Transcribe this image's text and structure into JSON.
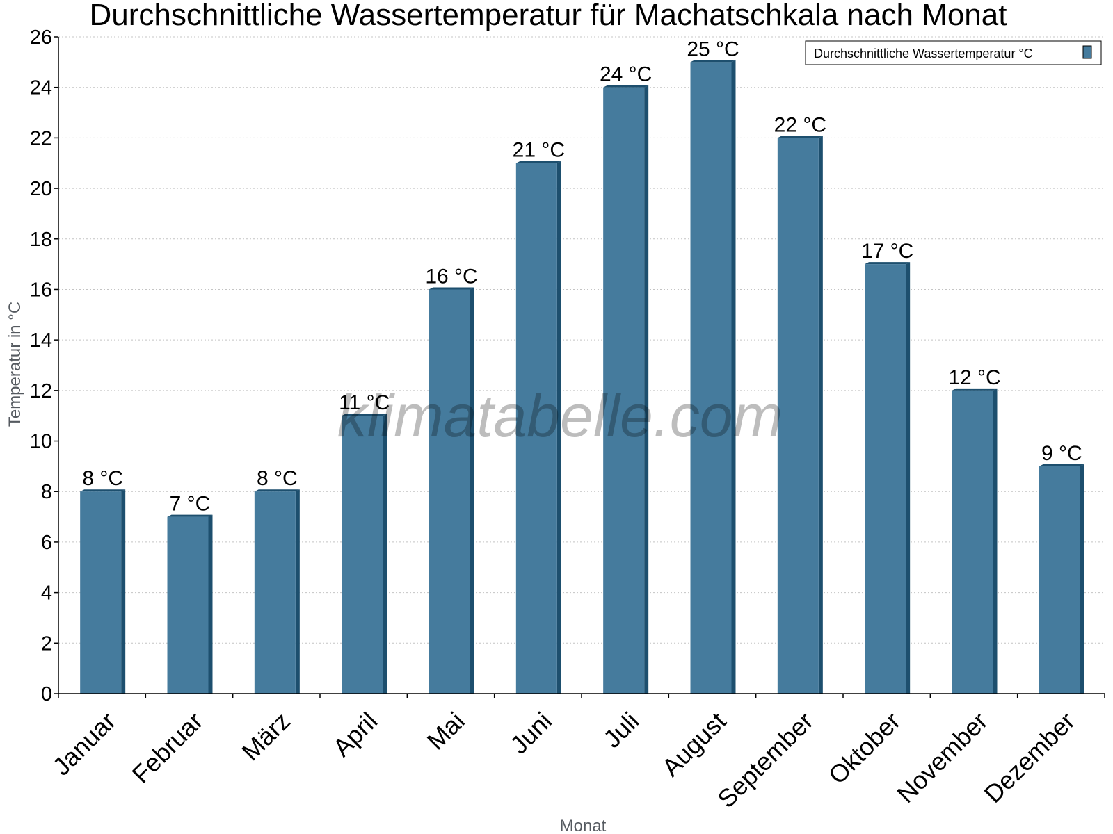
{
  "chart_data": {
    "type": "bar",
    "title": "Durchschnittliche Wassertemperatur für Machatschkala nach Monat",
    "xlabel": "Monat",
    "ylabel": "Temperatur in °C",
    "categories": [
      "Januar",
      "Februar",
      "März",
      "April",
      "Mai",
      "Juni",
      "Juli",
      "August",
      "September",
      "Oktober",
      "November",
      "Dezember"
    ],
    "series": [
      {
        "name": "Durchschnittliche Wassertemperatur °C",
        "values": [
          8,
          7,
          8,
          11,
          16,
          21,
          24,
          25,
          22,
          17,
          12,
          9
        ],
        "labels": [
          "8 °C",
          "7 °C",
          "8 °C",
          "11 °C",
          "16 °C",
          "21 °C",
          "24 °C",
          "25 °C",
          "22 °C",
          "17 °C",
          "12 °C",
          "9 °C"
        ],
        "color": "#457b9d",
        "edge_color": "#1d4f6e"
      }
    ],
    "ylim": [
      0,
      26
    ],
    "yticks": [
      0,
      2,
      4,
      6,
      8,
      10,
      12,
      14,
      16,
      18,
      20,
      22,
      24,
      26
    ],
    "grid": true,
    "legend_position": "top-right"
  },
  "watermark": "klimatabelle.com"
}
